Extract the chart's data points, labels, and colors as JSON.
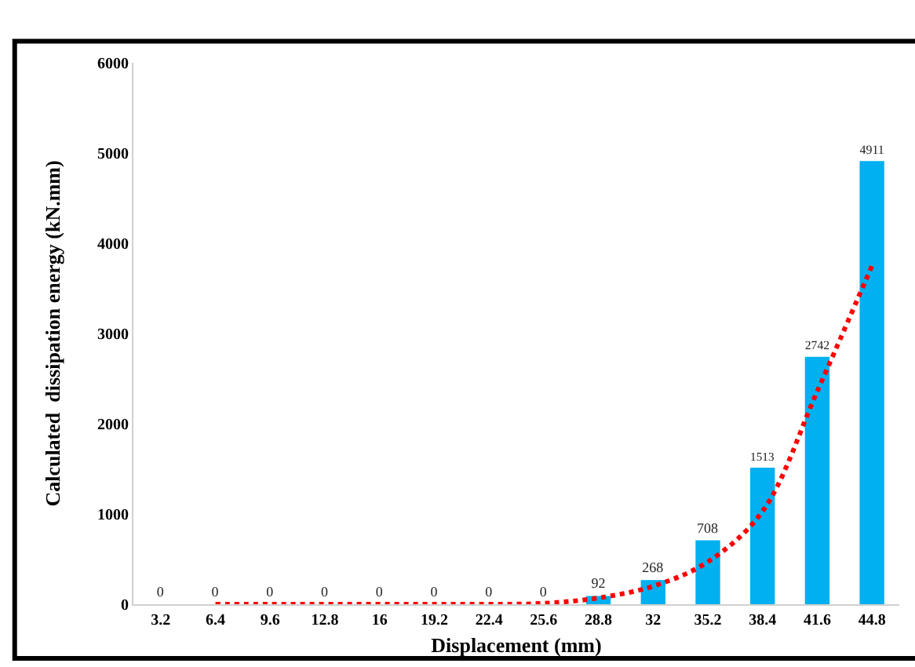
{
  "chart_data": {
    "type": "bar",
    "xlabel": "Displacement (mm)",
    "ylabel": "Calculated  dissipation energy (kN.mm)",
    "categories": [
      "3.2",
      "6.4",
      "9.6",
      "12.8",
      "16",
      "19.2",
      "22.4",
      "25.6",
      "28.8",
      "32",
      "35.2",
      "38.4",
      "41.6",
      "44.8"
    ],
    "series": [
      {
        "color": "#00b0f0",
        "values": [
          0,
          0,
          0,
          0,
          0,
          0,
          0,
          0,
          92,
          268,
          708,
          1513,
          2742,
          4911
        ],
        "value_labels": [
          "0",
          "0",
          "0",
          "0",
          "0",
          "0",
          "0",
          "0",
          "92",
          "268",
          "708",
          "1513",
          "2742",
          "4911"
        ]
      },
      {
        "type": "line",
        "color": "#ff0000",
        "line_style": "dotted",
        "marker": "none",
        "values": [
          null,
          0,
          0,
          0,
          0,
          0,
          0,
          10,
          70,
          200,
          470,
          1030,
          2360,
          3750
        ]
      }
    ],
    "ylim": [
      0,
      6000
    ],
    "yticks": [
      0,
      1000,
      2000,
      3000,
      4000,
      5000,
      6000
    ],
    "grid": false,
    "legend": false
  }
}
